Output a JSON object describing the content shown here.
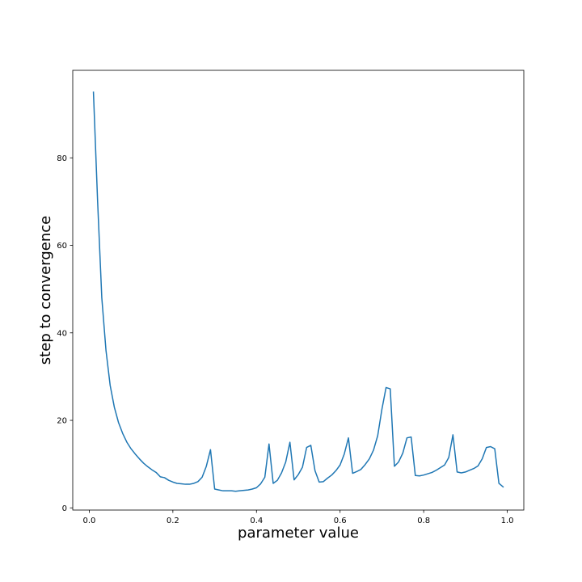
{
  "chart_data": {
    "type": "line",
    "title": "",
    "xlabel": "parameter value",
    "ylabel": "step to convergence",
    "xlim": [
      -0.0395,
      1.0395
    ],
    "ylim": [
      -0.5,
      100
    ],
    "xticks": [
      0.0,
      0.2,
      0.4,
      0.6,
      0.8,
      1.0
    ],
    "xtick_labels": [
      "0.0",
      "0.2",
      "0.4",
      "0.6",
      "0.8",
      "1.0"
    ],
    "yticks": [
      0,
      20,
      40,
      60,
      80
    ],
    "ytick_labels": [
      "0",
      "20",
      "40",
      "60",
      "80"
    ],
    "grid": false,
    "legend": null,
    "series": [
      {
        "name": "steps",
        "color": "#1f77b4",
        "x": [
          0.01,
          0.02,
          0.03,
          0.04,
          0.05,
          0.06,
          0.07,
          0.08,
          0.09,
          0.1,
          0.11,
          0.12,
          0.13,
          0.14,
          0.15,
          0.16,
          0.17,
          0.18,
          0.19,
          0.2,
          0.21,
          0.22,
          0.23,
          0.24,
          0.25,
          0.26,
          0.27,
          0.28,
          0.29,
          0.3,
          0.31,
          0.32,
          0.33,
          0.34,
          0.35,
          0.36,
          0.37,
          0.38,
          0.39,
          0.4,
          0.41,
          0.42,
          0.43,
          0.44,
          0.45,
          0.46,
          0.47,
          0.48,
          0.49,
          0.5,
          0.51,
          0.52,
          0.53,
          0.54,
          0.55,
          0.56,
          0.57,
          0.58,
          0.59,
          0.6,
          0.61,
          0.62,
          0.63,
          0.64,
          0.65,
          0.66,
          0.67,
          0.68,
          0.69,
          0.7,
          0.71,
          0.72,
          0.73,
          0.74,
          0.75,
          0.76,
          0.77,
          0.78,
          0.79,
          0.8,
          0.81,
          0.82,
          0.83,
          0.84,
          0.85,
          0.86,
          0.87,
          0.88,
          0.89,
          0.9,
          0.91,
          0.92,
          0.93,
          0.94,
          0.95,
          0.96,
          0.97,
          0.98,
          0.99
        ],
        "y": [
          95,
          70,
          48,
          36,
          28,
          23,
          19.5,
          17,
          15,
          13.5,
          12.3,
          11.2,
          10.2,
          9.4,
          8.7,
          8.1,
          7.1,
          6.9,
          6.3,
          5.9,
          5.6,
          5.5,
          5.4,
          5.4,
          5.6,
          6.0,
          7.0,
          9.5,
          13.3,
          4.3,
          4.1,
          3.9,
          3.9,
          3.9,
          3.8,
          3.9,
          4.0,
          4.1,
          4.3,
          4.6,
          5.5,
          7.0,
          14.6,
          5.6,
          6.3,
          8.0,
          10.5,
          15.0,
          6.4,
          7.6,
          9.3,
          13.8,
          14.3,
          8.5,
          5.9,
          6.0,
          6.8,
          7.5,
          8.5,
          9.8,
          12.3,
          16.0,
          7.9,
          8.3,
          8.8,
          9.9,
          11.2,
          13.2,
          16.5,
          22.5,
          27.5,
          27.2,
          9.5,
          10.5,
          12.5,
          16.0,
          16.2,
          7.4,
          7.3,
          7.5,
          7.8,
          8.1,
          8.6,
          9.2,
          9.8,
          11.5,
          16.7,
          8.2,
          8.0,
          8.2,
          8.6,
          9.0,
          9.6,
          11.2,
          13.8,
          14.0,
          13.5,
          5.6,
          4.8
        ]
      }
    ]
  }
}
